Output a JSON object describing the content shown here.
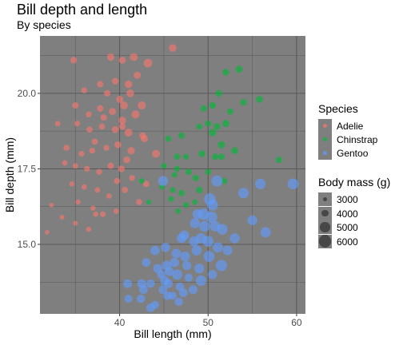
{
  "title": "Bill depth and length",
  "subtitle": "By species",
  "chart_data": {
    "type": "scatter",
    "title": "Bill depth and length",
    "subtitle": "By species",
    "xlabel": "Bill length (mm)",
    "ylabel": "Bill depth (mm)",
    "xlim": [
      31,
      61
    ],
    "ylim": [
      12.7,
      21.9
    ],
    "x_ticks": [
      40,
      50,
      60
    ],
    "y_ticks": [
      15.0,
      17.5,
      20.0
    ],
    "y_tick_labels": [
      "15.0",
      "17.5",
      "20.0"
    ],
    "grid": true,
    "legend_position": "right",
    "size_legend": {
      "title": "Body mass (g)",
      "values": [
        3000,
        4000,
        5000,
        6000
      ],
      "labels": [
        "3000",
        "4000",
        "5000",
        "6000"
      ]
    },
    "color_legend_title": "Species",
    "colors": {
      "Adelie": "#f8766d",
      "Chinstrap": "#00ba38",
      "Gentoo": "#619cff"
    },
    "series": [
      {
        "name": "Adelie",
        "color": "#f8766d",
        "points": [
          [
            34.8,
            21.1,
            3800
          ],
          [
            39.0,
            21.2,
            4100
          ],
          [
            40.3,
            21.1,
            3900
          ],
          [
            41.6,
            21.2,
            4300
          ],
          [
            43.2,
            21.0,
            4600
          ],
          [
            46.0,
            21.5,
            4200
          ],
          [
            37.8,
            20.3,
            3700
          ],
          [
            39.5,
            20.4,
            3800
          ],
          [
            41.0,
            20.3,
            4150
          ],
          [
            42.0,
            20.6,
            4000
          ],
          [
            36.0,
            20.1,
            3500
          ],
          [
            38.6,
            20.0,
            3700
          ],
          [
            40.0,
            19.8,
            4000
          ],
          [
            41.2,
            20.0,
            4200
          ],
          [
            35.0,
            19.6,
            3700
          ],
          [
            36.5,
            19.3,
            3500
          ],
          [
            37.8,
            19.5,
            3800
          ],
          [
            39.2,
            19.4,
            4000
          ],
          [
            40.5,
            19.6,
            4300
          ],
          [
            42.5,
            19.6,
            4400
          ],
          [
            33.0,
            19.0,
            3300
          ],
          [
            35.2,
            19.0,
            3400
          ],
          [
            36.6,
            18.8,
            3600
          ],
          [
            38.0,
            18.9,
            3600
          ],
          [
            39.5,
            18.8,
            3900
          ],
          [
            40.3,
            19.1,
            4200
          ],
          [
            41.0,
            18.7,
            4300
          ],
          [
            42.6,
            18.6,
            3800
          ],
          [
            34.0,
            18.2,
            3600
          ],
          [
            35.7,
            18.0,
            3400
          ],
          [
            37.2,
            18.4,
            3600
          ],
          [
            38.5,
            18.2,
            3500
          ],
          [
            39.8,
            18.3,
            3900
          ],
          [
            41.3,
            18.1,
            4100
          ],
          [
            42.8,
            18.5,
            4000
          ],
          [
            44.1,
            18.0,
            4300
          ],
          [
            33.8,
            17.7,
            3300
          ],
          [
            35.0,
            17.6,
            3300
          ],
          [
            36.3,
            17.5,
            3500
          ],
          [
            37.7,
            17.4,
            3500
          ],
          [
            39.0,
            17.6,
            3700
          ],
          [
            40.2,
            17.5,
            3800
          ],
          [
            41.4,
            17.2,
            3500
          ],
          [
            43.0,
            17.0,
            3700
          ],
          [
            34.6,
            17.0,
            3200
          ],
          [
            36.0,
            16.9,
            3300
          ],
          [
            37.5,
            16.8,
            3400
          ],
          [
            38.8,
            16.6,
            3300
          ],
          [
            40.6,
            16.8,
            3600
          ],
          [
            42.2,
            16.4,
            3500
          ],
          [
            35.3,
            16.4,
            3100
          ],
          [
            37.0,
            16.2,
            3200
          ],
          [
            38.1,
            16.0,
            3400
          ],
          [
            39.6,
            16.1,
            3300
          ],
          [
            32.3,
            16.3,
            2950
          ],
          [
            33.5,
            15.9,
            3050
          ],
          [
            35.0,
            15.7,
            3050
          ],
          [
            36.5,
            15.5,
            3200
          ],
          [
            31.8,
            15.4,
            2900
          ],
          [
            40.3,
            18.9,
            3800
          ],
          [
            38.2,
            19.2,
            3700
          ],
          [
            39.7,
            17.1,
            3600
          ],
          [
            36.9,
            18.1,
            3500
          ],
          [
            41.8,
            19.3,
            4400
          ],
          [
            40.8,
            17.8,
            3900
          ],
          [
            37.3,
            16.0,
            3250
          ]
        ]
      },
      {
        "name": "Chinstrap",
        "color": "#00ba38",
        "points": [
          [
            52.0,
            20.7,
            3800
          ],
          [
            53.5,
            20.8,
            3950
          ],
          [
            51.2,
            20.0,
            3800
          ],
          [
            54.0,
            19.7,
            3800
          ],
          [
            49.5,
            19.5,
            3700
          ],
          [
            50.5,
            19.6,
            3800
          ],
          [
            52.5,
            19.4,
            3700
          ],
          [
            55.8,
            19.8,
            3850
          ],
          [
            49.0,
            18.9,
            3550
          ],
          [
            50.0,
            19.0,
            3650
          ],
          [
            51.0,
            18.9,
            3850
          ],
          [
            52.0,
            19.0,
            4000
          ],
          [
            45.5,
            18.5,
            3600
          ],
          [
            47.0,
            18.6,
            3700
          ],
          [
            50.5,
            18.7,
            4100
          ],
          [
            51.5,
            18.3,
            4000
          ],
          [
            46.5,
            17.9,
            3600
          ],
          [
            47.5,
            17.9,
            3500
          ],
          [
            49.3,
            18.0,
            3900
          ],
          [
            50.8,
            17.9,
            3700
          ],
          [
            51.5,
            17.9,
            3800
          ],
          [
            53.0,
            18.1,
            3900
          ],
          [
            45.0,
            17.6,
            3400
          ],
          [
            46.5,
            17.5,
            3500
          ],
          [
            47.8,
            17.4,
            3650
          ],
          [
            48.6,
            17.2,
            3650
          ],
          [
            50.0,
            17.4,
            3500
          ],
          [
            51.8,
            17.1,
            3700
          ],
          [
            42.5,
            17.1,
            3350
          ],
          [
            44.8,
            16.9,
            3400
          ],
          [
            46.0,
            16.8,
            3350
          ],
          [
            47.0,
            16.7,
            3650
          ],
          [
            49.0,
            16.8,
            3800
          ],
          [
            43.3,
            16.4,
            3200
          ],
          [
            45.8,
            16.5,
            3400
          ],
          [
            47.5,
            16.3,
            3450
          ],
          [
            48.5,
            16.4,
            3300
          ],
          [
            58.0,
            17.8,
            3700
          ],
          [
            46.6,
            16.1,
            3250
          ],
          [
            46.2,
            17.3,
            3350
          ]
        ]
      },
      {
        "name": "Gentoo",
        "color": "#619cff",
        "points": [
          [
            59.6,
            17.0,
            5550
          ],
          [
            55.9,
            17.0,
            5400
          ],
          [
            54.0,
            16.7,
            5400
          ],
          [
            51.0,
            17.1,
            5600
          ],
          [
            44.9,
            17.1,
            5100
          ],
          [
            50.5,
            16.3,
            5500
          ],
          [
            48.8,
            16.0,
            5200
          ],
          [
            49.5,
            16.0,
            5700
          ],
          [
            50.4,
            15.9,
            5700
          ],
          [
            48.5,
            15.7,
            5100
          ],
          [
            49.6,
            15.6,
            5500
          ],
          [
            50.8,
            15.6,
            5300
          ],
          [
            51.6,
            15.5,
            5400
          ],
          [
            53.0,
            15.2,
            5150
          ],
          [
            55.0,
            15.8,
            5100
          ],
          [
            56.5,
            15.4,
            5250
          ],
          [
            47.0,
            15.2,
            4950
          ],
          [
            48.4,
            15.1,
            5100
          ],
          [
            49.2,
            15.2,
            5300
          ],
          [
            50.0,
            15.1,
            5500
          ],
          [
            51.1,
            14.9,
            5250
          ],
          [
            52.2,
            14.8,
            5000
          ],
          [
            44.0,
            14.8,
            4900
          ],
          [
            45.2,
            14.9,
            4800
          ],
          [
            46.4,
            14.7,
            4900
          ],
          [
            47.4,
            14.6,
            5050
          ],
          [
            48.7,
            14.8,
            5200
          ],
          [
            50.1,
            14.6,
            5600
          ],
          [
            51.5,
            14.3,
            5650
          ],
          [
            43.0,
            14.4,
            4600
          ],
          [
            44.3,
            14.2,
            4750
          ],
          [
            45.3,
            14.3,
            5000
          ],
          [
            46.2,
            14.4,
            4850
          ],
          [
            47.6,
            14.3,
            4800
          ],
          [
            49.0,
            14.2,
            5100
          ],
          [
            50.5,
            14.0,
            4800
          ],
          [
            44.7,
            14.0,
            4500
          ],
          [
            45.6,
            14.1,
            4700
          ],
          [
            46.5,
            14.0,
            5300
          ],
          [
            47.8,
            13.9,
            4400
          ],
          [
            49.2,
            13.8,
            5400
          ],
          [
            42.5,
            13.7,
            4700
          ],
          [
            43.5,
            13.7,
            4500
          ],
          [
            45.1,
            13.8,
            4800
          ],
          [
            46.8,
            13.6,
            4500
          ],
          [
            48.3,
            13.5,
            4650
          ],
          [
            40.9,
            13.7,
            4650
          ],
          [
            42.7,
            13.5,
            4600
          ],
          [
            44.9,
            13.5,
            4550
          ],
          [
            46.0,
            13.3,
            4400
          ],
          [
            47.2,
            13.4,
            4700
          ],
          [
            41.0,
            13.2,
            4350
          ],
          [
            42.4,
            13.2,
            4500
          ],
          [
            44.0,
            13.0,
            4375
          ],
          [
            45.4,
            13.3,
            4550
          ],
          [
            46.7,
            13.1,
            4450
          ],
          [
            43.5,
            12.9,
            4600
          ],
          [
            45.5,
            13.7,
            4700
          ],
          [
            47.3,
            15.3,
            5100
          ],
          [
            50.2,
            16.5,
            5800
          ]
        ]
      }
    ]
  },
  "legend_species": {
    "title": "Species",
    "items": [
      {
        "label": "Adelie",
        "color": "#f8766d"
      },
      {
        "label": "Chinstrap",
        "color": "#00ba38"
      },
      {
        "label": "Gentoo",
        "color": "#619cff"
      }
    ]
  },
  "legend_mass": {
    "title": "Body mass (g)",
    "items": [
      {
        "label": "3000",
        "value": 3000
      },
      {
        "label": "4000",
        "value": 4000
      },
      {
        "label": "5000",
        "value": 5000
      },
      {
        "label": "6000",
        "value": 6000
      }
    ]
  }
}
